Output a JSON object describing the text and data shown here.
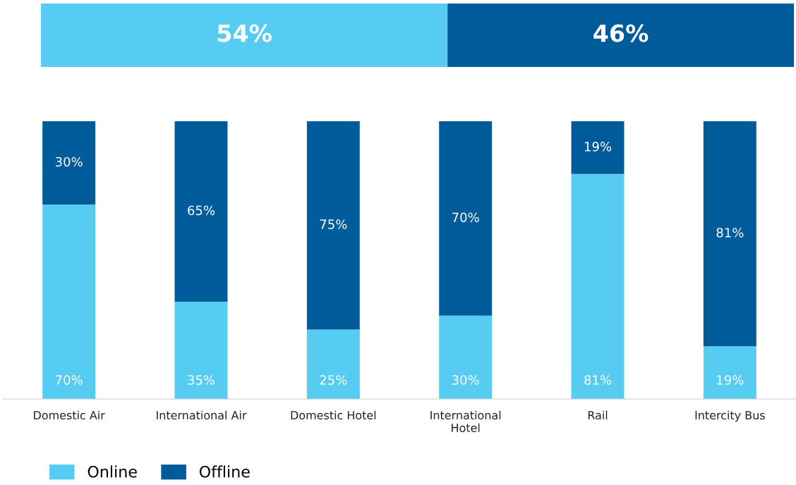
{
  "chart_data": [
    {
      "type": "bar",
      "orientation": "horizontal",
      "stacked": true,
      "categories": [
        null
      ],
      "xlim": [
        0,
        100
      ],
      "tick_labels": false,
      "series": [
        {
          "color": "#56ccf2",
          "values": [
            54
          ],
          "value_labels": [
            "54%"
          ]
        },
        {
          "color": "#005b9a",
          "values": [
            46
          ],
          "value_labels": [
            "46%"
          ]
        }
      ]
    },
    {
      "type": "bar",
      "stacked": true,
      "categories": [
        "Domestic Air",
        "International Air",
        "Domestic Hotel",
        "International\nHotel",
        "Rail",
        "Intercity Bus"
      ],
      "ylim": [
        0,
        100
      ],
      "tick_labels": "x",
      "legend": "bottom",
      "series": [
        {
          "name": "Online",
          "color": "#56ccf2",
          "values": [
            70,
            35,
            25,
            30,
            81,
            19
          ],
          "value_labels": [
            "70%",
            "35%",
            "25%",
            "30%",
            "81%",
            "19%"
          ]
        },
        {
          "name": "Offline",
          "color": "#005b9a",
          "values": [
            30,
            65,
            75,
            70,
            19,
            81
          ],
          "value_labels": [
            "30%",
            "65%",
            "75%",
            "70%",
            "19%",
            "81%"
          ]
        }
      ]
    }
  ]
}
